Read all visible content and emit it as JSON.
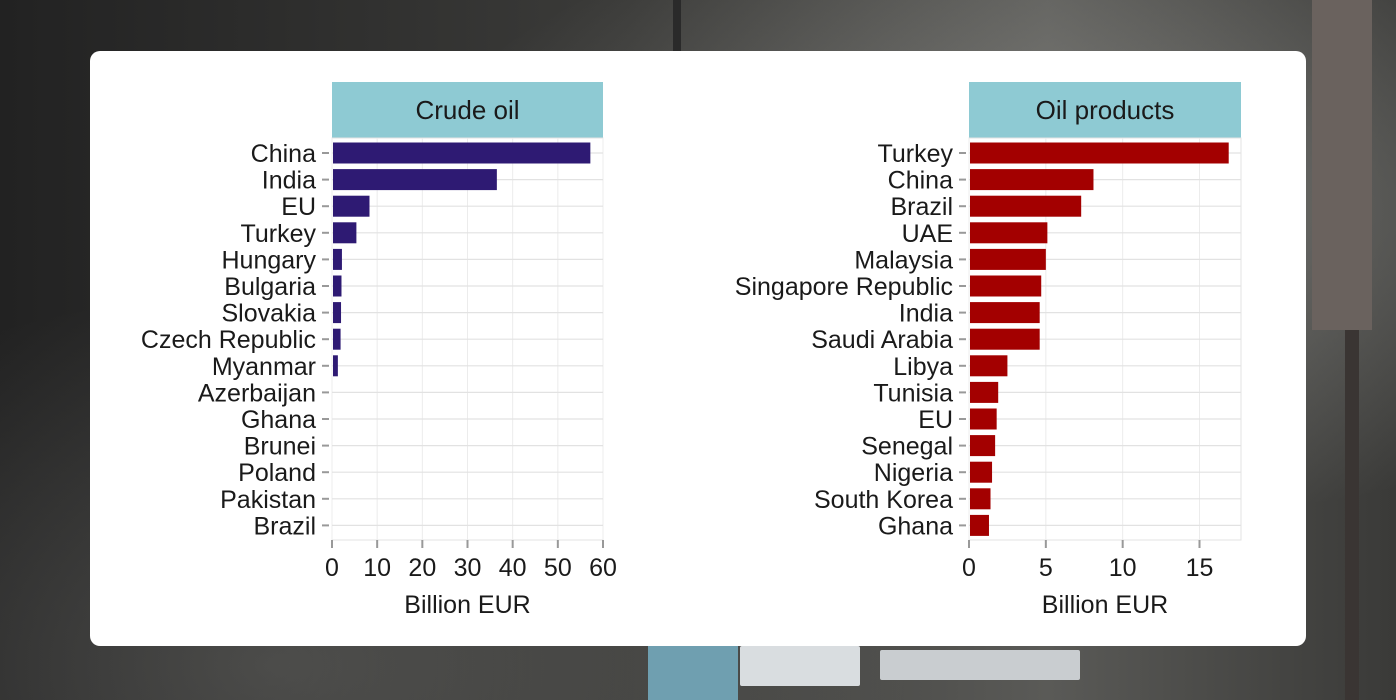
{
  "chart_data": [
    {
      "type": "bar",
      "orientation": "horizontal",
      "facet_title": "Crude oil",
      "xlabel": "Billion EUR",
      "ylabel": "",
      "xlim": [
        0,
        60
      ],
      "xticks": [
        0,
        10,
        20,
        30,
        40,
        50,
        60
      ],
      "grid": true,
      "color": "#2e1a73",
      "facet_color": "#8ecad3",
      "categories": [
        "China",
        "India",
        "EU",
        "Turkey",
        "Hungary",
        "Bulgaria",
        "Slovakia",
        "Czech Republic",
        "Myanmar",
        "Azerbaijan",
        "Ghana",
        "Brunei",
        "Poland",
        "Pakistan",
        "Brazil"
      ],
      "values": [
        57.2,
        36.5,
        8.3,
        5.4,
        2.2,
        2.1,
        2.0,
        1.9,
        1.3,
        0.2,
        0.2,
        0.15,
        0.1,
        0.1,
        0.1
      ]
    },
    {
      "type": "bar",
      "orientation": "horizontal",
      "facet_title": "Oil products",
      "xlabel": "Billion EUR",
      "ylabel": "",
      "xlim": [
        0,
        17.7
      ],
      "xticks": [
        0,
        5,
        10,
        15
      ],
      "grid": true,
      "color": "#a30000",
      "facet_color": "#8ecad3",
      "categories": [
        "Turkey",
        "China",
        "Brazil",
        "UAE",
        "Malaysia",
        "Singapore Republic",
        "India",
        "Saudi Arabia",
        "Libya",
        "Tunisia",
        "EU",
        "Senegal",
        "Nigeria",
        "South Korea",
        "Ghana"
      ],
      "values": [
        16.9,
        8.1,
        7.3,
        5.1,
        5.0,
        4.7,
        4.6,
        4.6,
        2.5,
        1.9,
        1.8,
        1.7,
        1.5,
        1.4,
        1.3
      ]
    }
  ]
}
